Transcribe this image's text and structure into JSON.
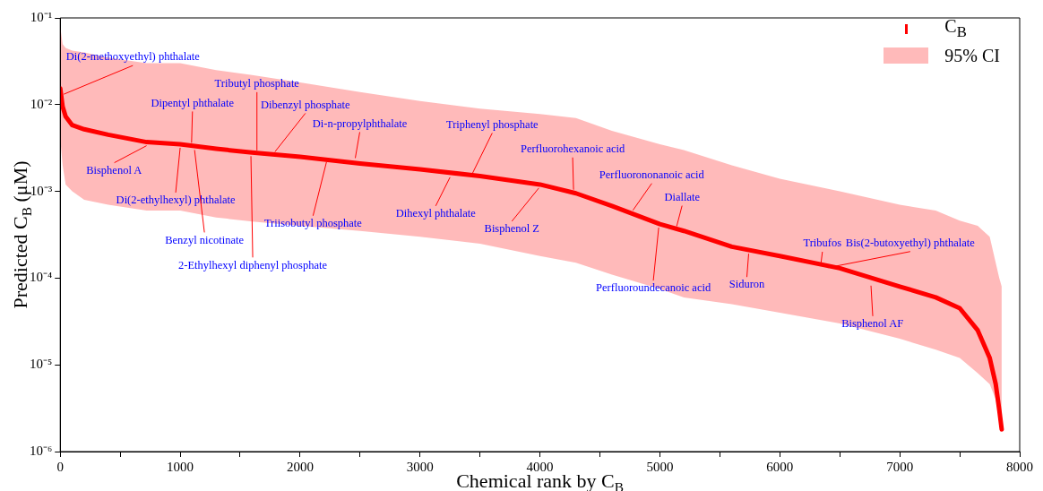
{
  "chart_data": {
    "type": "line",
    "xlabel": "Chemical rank by C$_{B}$",
    "ylabel": "Predicted C$_{B}$ (μM)",
    "log": "y",
    "grid": false,
    "legend": "top right",
    "marker": "none",
    "line_style": "solid",
    "xlim": [
      0,
      8000
    ],
    "xticks": [
      0,
      {
        "value": 500,
        "label": null
      },
      1000,
      {
        "value": 1500,
        "label": null
      },
      2000,
      {
        "value": 2500,
        "label": null
      },
      3000,
      {
        "value": 3500,
        "label": null
      },
      4000,
      {
        "value": 4500,
        "label": null
      },
      5000,
      {
        "value": 5500,
        "label": null
      },
      6000,
      {
        "value": 6500,
        "label": null
      },
      7000,
      {
        "value": 7500,
        "label": null
      },
      8000
    ],
    "ylim": [
      1e-06,
      0.1
    ],
    "yticks": [
      {
        "value": 1e-06,
        "label": "10⁻⁶"
      },
      {
        "value": 1e-05,
        "label": "10⁻⁵"
      },
      {
        "value": 0.0001,
        "label": "10⁻⁴"
      },
      {
        "value": 0.001,
        "label": "10⁻³"
      },
      {
        "value": 0.01,
        "label": "10⁻²"
      },
      {
        "value": 0.1,
        "label": "10⁻¹"
      }
    ],
    "series": [
      {
        "name": "C$_{B}$",
        "color": "#ff0000",
        "x": [
          0,
          20,
          45,
          100,
          200,
          400,
          720,
          1000,
          1300,
          1600,
          2000,
          2500,
          3000,
          3500,
          4000,
          4300,
          4600,
          5000,
          5200,
          5600,
          6000,
          6500,
          7000,
          7300,
          7500,
          7650,
          7750,
          7800,
          7830,
          7850
        ],
        "values": [
          0.0154,
          0.0095,
          0.0073,
          0.0058,
          0.0052,
          0.0045,
          0.0037,
          0.0035,
          0.0031,
          0.0028,
          0.0025,
          0.0021,
          0.0018,
          0.0015,
          0.0012,
          0.00095,
          0.00068,
          0.00042,
          0.00035,
          0.00023,
          0.00018,
          0.00013,
          8e-05,
          6e-05,
          4.5e-05,
          2.5e-05,
          1.2e-05,
          6e-06,
          3e-06,
          1.8e-06
        ],
        "upper": [
          0.08,
          0.05,
          0.045,
          0.042,
          0.04,
          0.035,
          0.03,
          0.03,
          0.025,
          0.022,
          0.018,
          0.014,
          0.011,
          0.009,
          0.0078,
          0.007,
          0.005,
          0.0035,
          0.003,
          0.002,
          0.0014,
          0.001,
          0.0007,
          0.0006,
          0.00046,
          0.0004,
          0.0003,
          0.00015,
          0.0001,
          8e-05
        ],
        "lower": [
          0.004,
          0.002,
          0.0012,
          0.001,
          0.0008,
          0.0007,
          0.0006,
          0.0006,
          0.0005,
          0.00045,
          0.0004,
          0.00035,
          0.0003,
          0.00025,
          0.00018,
          0.00015,
          0.00011,
          7.5e-05,
          6e-05,
          5e-05,
          4e-05,
          3e-05,
          2e-05,
          1.5e-05,
          1.2e-05,
          8e-06,
          6e-06,
          4e-06,
          2.5e-06,
          1.7e-06
        ]
      }
    ],
    "annotations": [
      "95% CI",
      {
        "text": "Di(2-methoxyethyl) phthalate",
        "x": 30,
        "y": 0.012
      },
      {
        "text": "Dipentyl phthalate",
        "x": 1095,
        "y": 0.0033
      },
      {
        "text": "Tributyl phosphate",
        "x": 1640,
        "y": 0.0027
      },
      {
        "text": "Dibenzyl phosphate",
        "x": 1790,
        "y": 0.0026
      },
      {
        "text": "Di-n-propylphthalate",
        "x": 2460,
        "y": 0.0022
      },
      {
        "text": "Triphenyl phosphate",
        "x": 3430,
        "y": 0.0014
      },
      {
        "text": "Perfluorohexanoic acid",
        "x": 4280,
        "y": 0.00095
      },
      {
        "text": "Perfluorononanoic acid",
        "x": 4775,
        "y": 0.00055
      },
      {
        "text": "Diallate",
        "x": 5140,
        "y": 0.00036
      },
      {
        "text": "Tribufos",
        "x": 6340,
        "y": 0.000125
      },
      {
        "text": "Bis(2-butoxyethyl) phthalate",
        "x": 6400,
        "y": 0.00012
      },
      {
        "text": "Bisphenol A",
        "x": 720,
        "y": 0.0037
      },
      {
        "text": "Di(2-ethylhexyl) phthalate",
        "x": 1000,
        "y": 0.0035
      },
      {
        "text": "Benzyl nicotinate",
        "x": 1120,
        "y": 0.0033
      },
      {
        "text": "2-Ethylhexyl diphenyl phosphate",
        "x": 1590,
        "y": 0.0028
      },
      {
        "text": "Triisobutyl phosphate",
        "x": 2220,
        "y": 0.0024
      },
      {
        "text": "Dihexyl phthalate",
        "x": 3250,
        "y": 0.0016
      },
      {
        "text": "Bisphenol Z",
        "x": 3990,
        "y": 0.0012
      },
      {
        "text": "Perfluoroundecanoic acid",
        "x": 4990,
        "y": 0.00042
      },
      {
        "text": "Siduron",
        "x": 5740,
        "y": 0.00021
      },
      {
        "text": "Bisphenol AF",
        "x": 6760,
        "y": 9e-05
      }
    ]
  }
}
